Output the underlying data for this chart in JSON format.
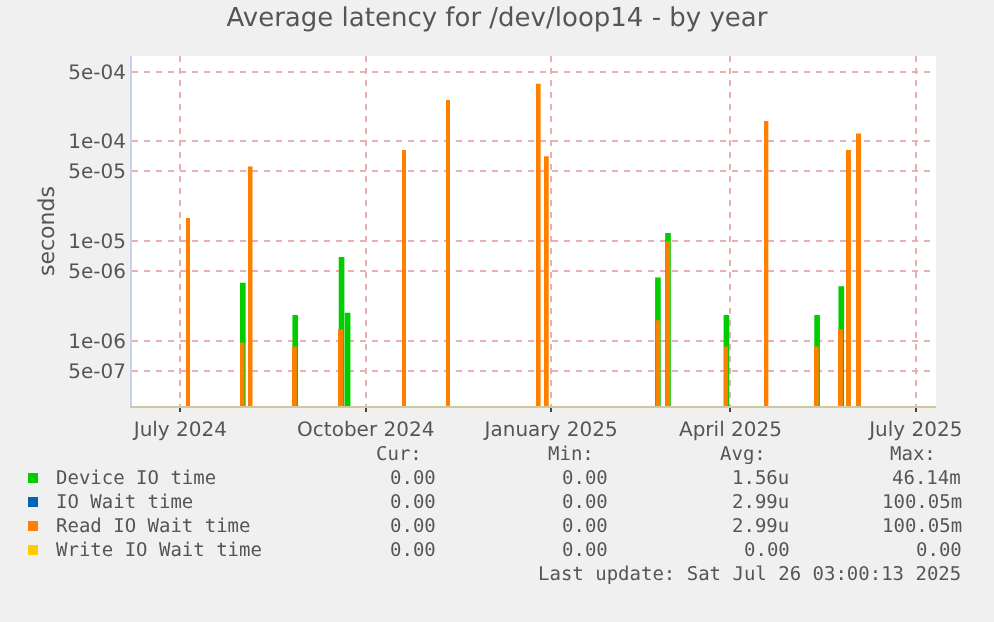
{
  "chart_data": {
    "type": "bar",
    "title": "Average latency for /dev/loop14 - by year",
    "ylabel": "seconds",
    "x": [
      "2024-07-20",
      "2024-08-16",
      "2024-08-20",
      "2024-09-11",
      "2024-10-04",
      "2024-10-07",
      "2024-11-04",
      "2024-11-26",
      "2025-01-10",
      "2025-01-14",
      "2025-03-10",
      "2025-03-15",
      "2025-04-13",
      "2025-05-03",
      "2025-05-28",
      "2025-06-09",
      "2025-06-13",
      "2025-06-18"
    ],
    "series": [
      {
        "name": "Device IO time",
        "color": "#00cc00",
        "values": [
          null,
          3.8e-06,
          null,
          1.8e-06,
          6.9e-06,
          1.9e-06,
          null,
          null,
          null,
          null,
          4.3e-06,
          1.2e-05,
          1.8e-06,
          null,
          1.8e-06,
          3.5e-06,
          null,
          null
        ]
      },
      {
        "name": "IO Wait time",
        "color": "#0066b3",
        "values": [
          null,
          null,
          null,
          null,
          null,
          null,
          null,
          null,
          null,
          null,
          null,
          null,
          null,
          null,
          null,
          null,
          null,
          null
        ]
      },
      {
        "name": "Read IO Wait time",
        "color": "#ff8000",
        "values": [
          1.7e-05,
          9.5e-07,
          5.6e-05,
          8.7e-07,
          1.3e-06,
          null,
          8.2e-05,
          0.00026,
          0.00038,
          7.1e-05,
          1.6e-06,
          1e-05,
          8.7e-07,
          0.00016,
          8.7e-07,
          1.3e-06,
          8.2e-05,
          0.00012
        ]
      },
      {
        "name": "Write IO Wait time",
        "color": "#ffcc00",
        "values": [
          null,
          null,
          null,
          null,
          null,
          null,
          null,
          null,
          null,
          null,
          null,
          null,
          null,
          null,
          null,
          null,
          null,
          null
        ]
      }
    ],
    "log": true,
    "ylim": [
      2.2e-07,
      0.00072
    ],
    "yticks": [
      {
        "value": 5e-07,
        "label": "5e-07"
      },
      {
        "value": 1e-06,
        "label": "1e-06"
      },
      {
        "value": 5e-06,
        "label": "5e-06"
      },
      {
        "value": 1e-05,
        "label": "1e-05"
      },
      {
        "value": 5e-05,
        "label": "5e-05"
      },
      {
        "value": 0.0001,
        "label": "1e-04"
      },
      {
        "value": 0.0005,
        "label": "5e-04"
      }
    ],
    "xlim": [
      "2024-06-22",
      "2025-07-26"
    ],
    "xticks": [
      {
        "value": "2024-07-16",
        "label": "July 2024"
      },
      {
        "value": "2024-10-16",
        "label": "October 2024"
      },
      {
        "value": "2025-01-16",
        "label": "January 2025"
      },
      {
        "value": "2025-04-15",
        "label": "April 2025"
      },
      {
        "value": "2025-07-16",
        "label": "July 2025"
      }
    ],
    "grid": true,
    "legend": "bottom left",
    "annotations": [
      "Cur:",
      "Min:",
      "Avg:",
      "Max:",
      "0.00",
      "0.00",
      "1.56u",
      "46.14m",
      "0.00",
      "0.00",
      "2.99u",
      "100.05m",
      "0.00",
      "0.00",
      "2.99u",
      "100.05m",
      "0.00",
      "0.00",
      "0.00",
      "0.00",
      "Last update: Sat Jul 26 03:00:13 2025"
    ]
  }
}
